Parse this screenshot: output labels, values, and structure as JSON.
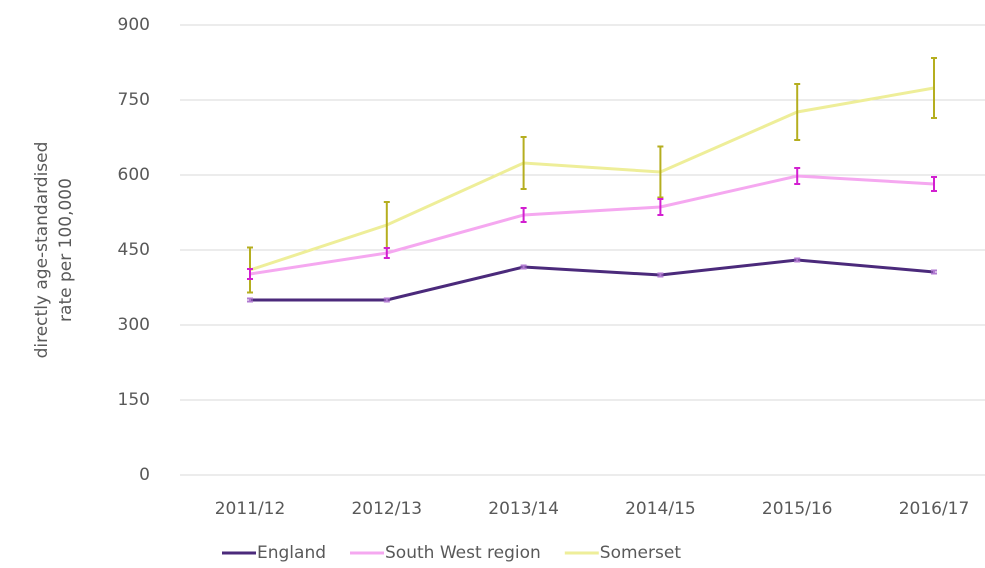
{
  "chart_data": {
    "type": "line",
    "ylabel": [
      "directly age-standardised",
      "rate per 100,000"
    ],
    "categories": [
      "2011/12",
      "2012/13",
      "2013/14",
      "2014/15",
      "2015/16",
      "2016/17"
    ],
    "series": [
      {
        "name": "England",
        "color": "#4b2a7b",
        "error_color": "#b07ad0",
        "values": [
          350,
          350,
          416,
          400,
          430,
          406
        ],
        "errors": [
          3,
          3,
          3,
          3,
          3,
          3
        ]
      },
      {
        "name": "South West region",
        "color": "#f5a8f0",
        "error_color": "#d21fd0",
        "values": [
          402,
          444,
          520,
          536,
          598,
          582
        ],
        "errors": [
          10,
          10,
          14,
          16,
          16,
          14
        ]
      },
      {
        "name": "Somerset",
        "color": "#eeee99",
        "error_color": "#b5ae1f",
        "values": [
          410,
          500,
          624,
          606,
          726,
          774
        ],
        "errors": [
          45,
          46,
          52,
          51,
          56,
          60
        ]
      }
    ],
    "ylim": [
      0,
      900
    ],
    "yticks": [
      0,
      150,
      300,
      450,
      600,
      750,
      900
    ],
    "grid": true,
    "legend": "bottom"
  }
}
